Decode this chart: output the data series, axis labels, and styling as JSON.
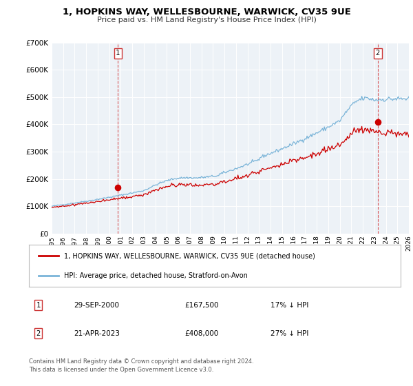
{
  "title": "1, HOPKINS WAY, WELLESBOURNE, WARWICK, CV35 9UE",
  "subtitle": "Price paid vs. HM Land Registry's House Price Index (HPI)",
  "legend_line1": "1, HOPKINS WAY, WELLESBOURNE, WARWICK, CV35 9UE (detached house)",
  "legend_line2": "HPI: Average price, detached house, Stratford-on-Avon",
  "footnote1": "Contains HM Land Registry data © Crown copyright and database right 2024.",
  "footnote2": "This data is licensed under the Open Government Licence v3.0.",
  "marker1_price": 167500,
  "marker1_text": "29-SEP-2000",
  "marker1_price_text": "£167,500",
  "marker1_hpi_text": "17% ↓ HPI",
  "marker2_price": 408000,
  "marker2_text": "21-APR-2023",
  "marker2_price_text": "£408,000",
  "marker2_hpi_text": "27% ↓ HPI",
  "sale1_year": 2000.75,
  "sale2_year": 2023.3,
  "red_color": "#cc0000",
  "blue_color": "#7ab4d8",
  "background_color": "#edf2f7",
  "ylim_min": 0,
  "ylim_max": 700000,
  "xlim_min": 1995,
  "xlim_max": 2026
}
